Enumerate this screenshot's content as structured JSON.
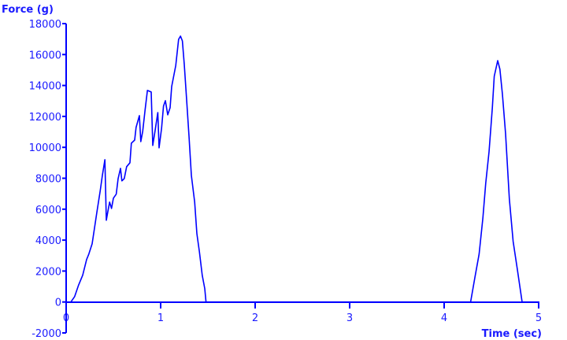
{
  "chart_data": {
    "type": "line",
    "xlabel": "Time (sec)",
    "ylabel": "Force (g)",
    "xlim": [
      0,
      5
    ],
    "ylim": [
      -2000,
      18000
    ],
    "xticks": [
      "0",
      "1",
      "2",
      "3",
      "4",
      "5"
    ],
    "yticks": [
      "-2000",
      "0",
      "2000",
      "4000",
      "6000",
      "8000",
      "10000",
      "12000",
      "14000",
      "16000",
      "18000"
    ],
    "grid": false,
    "color": "#0000ff",
    "series": [
      {
        "x": [
          0,
          0.05,
          0.09,
          0.13,
          0.175,
          0.217,
          0.24,
          0.275,
          0.3,
          0.325,
          0.36,
          0.383,
          0.41,
          0.425,
          0.44,
          0.46,
          0.48,
          0.5,
          0.53,
          0.55,
          0.575,
          0.59,
          0.615,
          0.64,
          0.675,
          0.69,
          0.725,
          0.74,
          0.775,
          0.79,
          0.81,
          0.835,
          0.86,
          0.9,
          0.917,
          0.94,
          0.97,
          0.983,
          1.01,
          1.03,
          1.05,
          1.075,
          1.1,
          1.117,
          1.16,
          1.19,
          1.21,
          1.23,
          1.25,
          1.275,
          1.3,
          1.325,
          1.36,
          1.383,
          1.41,
          1.44,
          1.467,
          1.48,
          4.28,
          4.325,
          4.37,
          4.41,
          4.44,
          4.475,
          4.51,
          4.53,
          4.567,
          4.59,
          4.617,
          4.65,
          4.69,
          4.73,
          4.775,
          4.825,
          5
        ],
        "y": [
          0,
          0,
          350,
          1070,
          1730,
          2750,
          3100,
          3760,
          4780,
          5800,
          7170,
          8190,
          9200,
          5290,
          5800,
          6460,
          6050,
          6710,
          6970,
          7980,
          8640,
          7830,
          7980,
          8750,
          9000,
          10270,
          10470,
          11290,
          12050,
          10370,
          11030,
          12400,
          13680,
          13580,
          10120,
          11030,
          12250,
          9970,
          11240,
          12660,
          13020,
          12100,
          12560,
          13930,
          15300,
          16980,
          17190,
          16880,
          15360,
          13070,
          10730,
          8190,
          6460,
          4420,
          3250,
          1730,
          870,
          0,
          0,
          1580,
          3100,
          5440,
          7680,
          9710,
          12560,
          14590,
          15610,
          15050,
          13430,
          10880,
          6660,
          3920,
          2090,
          0,
          0
        ]
      }
    ]
  }
}
